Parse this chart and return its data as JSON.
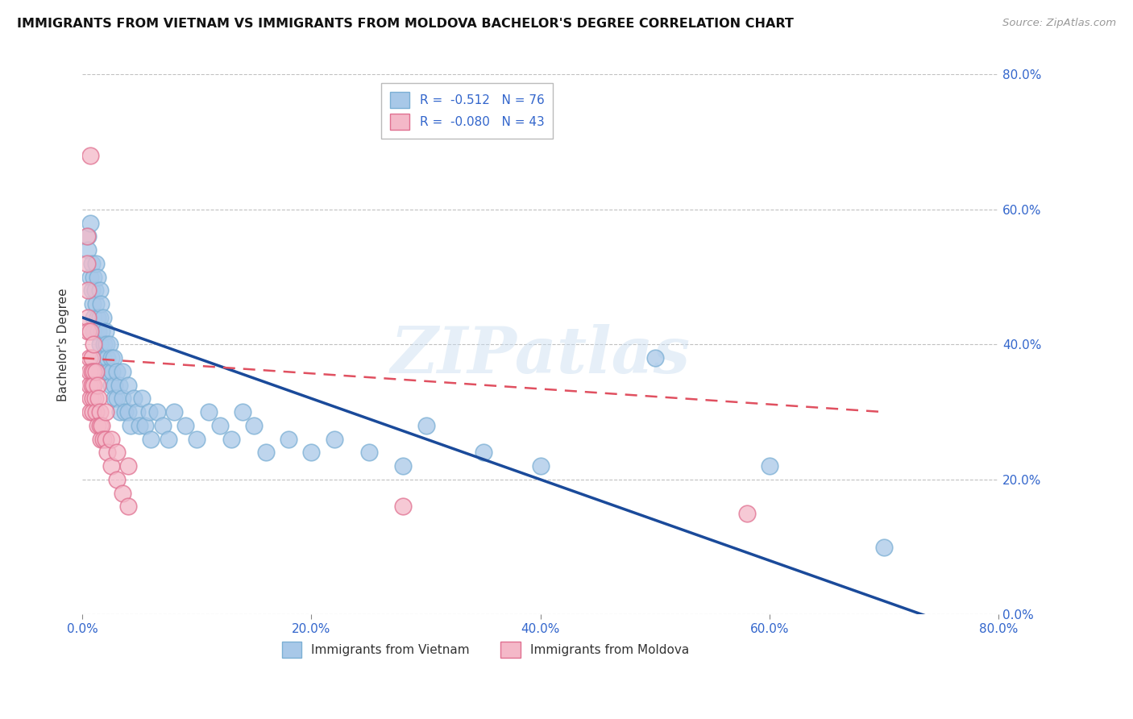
{
  "title": "IMMIGRANTS FROM VIETNAM VS IMMIGRANTS FROM MOLDOVA BACHELOR'S DEGREE CORRELATION CHART",
  "source": "Source: ZipAtlas.com",
  "ylabel": "Bachelor's Degree",
  "x_range": [
    0,
    0.8
  ],
  "y_range": [
    0,
    0.8
  ],
  "vietnam_color": "#a8c8e8",
  "vietnam_edge": "#7bafd4",
  "moldova_color": "#f4b8c8",
  "moldova_edge": "#e07090",
  "trendline_vietnam_color": "#1a4a9a",
  "trendline_moldova_color": "#e05060",
  "watermark_text": "ZIPatlas",
  "legend_label_vn": "R =  -0.512   N = 76",
  "legend_label_md": "R =  -0.080   N = 43",
  "bottom_label_vn": "Immigrants from Vietnam",
  "bottom_label_md": "Immigrants from Moldova",
  "vietnam_scatter": [
    [
      0.005,
      0.56
    ],
    [
      0.005,
      0.54
    ],
    [
      0.007,
      0.58
    ],
    [
      0.007,
      0.5
    ],
    [
      0.008,
      0.52
    ],
    [
      0.008,
      0.48
    ],
    [
      0.009,
      0.46
    ],
    [
      0.01,
      0.44
    ],
    [
      0.01,
      0.5
    ],
    [
      0.01,
      0.42
    ],
    [
      0.011,
      0.48
    ],
    [
      0.012,
      0.46
    ],
    [
      0.012,
      0.52
    ],
    [
      0.013,
      0.44
    ],
    [
      0.013,
      0.5
    ],
    [
      0.014,
      0.42
    ],
    [
      0.015,
      0.48
    ],
    [
      0.015,
      0.44
    ],
    [
      0.015,
      0.4
    ],
    [
      0.016,
      0.46
    ],
    [
      0.017,
      0.42
    ],
    [
      0.018,
      0.38
    ],
    [
      0.018,
      0.44
    ],
    [
      0.019,
      0.4
    ],
    [
      0.02,
      0.42
    ],
    [
      0.02,
      0.36
    ],
    [
      0.021,
      0.4
    ],
    [
      0.022,
      0.38
    ],
    [
      0.023,
      0.36
    ],
    [
      0.024,
      0.4
    ],
    [
      0.025,
      0.38
    ],
    [
      0.025,
      0.34
    ],
    [
      0.026,
      0.36
    ],
    [
      0.027,
      0.38
    ],
    [
      0.028,
      0.34
    ],
    [
      0.028,
      0.32
    ],
    [
      0.03,
      0.36
    ],
    [
      0.03,
      0.32
    ],
    [
      0.032,
      0.34
    ],
    [
      0.033,
      0.3
    ],
    [
      0.035,
      0.32
    ],
    [
      0.035,
      0.36
    ],
    [
      0.037,
      0.3
    ],
    [
      0.04,
      0.34
    ],
    [
      0.04,
      0.3
    ],
    [
      0.042,
      0.28
    ],
    [
      0.045,
      0.32
    ],
    [
      0.048,
      0.3
    ],
    [
      0.05,
      0.28
    ],
    [
      0.052,
      0.32
    ],
    [
      0.055,
      0.28
    ],
    [
      0.058,
      0.3
    ],
    [
      0.06,
      0.26
    ],
    [
      0.065,
      0.3
    ],
    [
      0.07,
      0.28
    ],
    [
      0.075,
      0.26
    ],
    [
      0.08,
      0.3
    ],
    [
      0.09,
      0.28
    ],
    [
      0.1,
      0.26
    ],
    [
      0.11,
      0.3
    ],
    [
      0.12,
      0.28
    ],
    [
      0.13,
      0.26
    ],
    [
      0.14,
      0.3
    ],
    [
      0.15,
      0.28
    ],
    [
      0.16,
      0.24
    ],
    [
      0.18,
      0.26
    ],
    [
      0.2,
      0.24
    ],
    [
      0.22,
      0.26
    ],
    [
      0.25,
      0.24
    ],
    [
      0.28,
      0.22
    ],
    [
      0.3,
      0.28
    ],
    [
      0.35,
      0.24
    ],
    [
      0.4,
      0.22
    ],
    [
      0.5,
      0.38
    ],
    [
      0.6,
      0.22
    ],
    [
      0.7,
      0.1
    ]
  ],
  "moldova_scatter": [
    [
      0.004,
      0.56
    ],
    [
      0.004,
      0.52
    ],
    [
      0.005,
      0.48
    ],
    [
      0.005,
      0.44
    ],
    [
      0.005,
      0.42
    ],
    [
      0.006,
      0.38
    ],
    [
      0.006,
      0.36
    ],
    [
      0.006,
      0.34
    ],
    [
      0.007,
      0.32
    ],
    [
      0.007,
      0.3
    ],
    [
      0.007,
      0.42
    ],
    [
      0.008,
      0.38
    ],
    [
      0.008,
      0.36
    ],
    [
      0.008,
      0.34
    ],
    [
      0.009,
      0.32
    ],
    [
      0.009,
      0.3
    ],
    [
      0.01,
      0.4
    ],
    [
      0.01,
      0.36
    ],
    [
      0.01,
      0.34
    ],
    [
      0.011,
      0.32
    ],
    [
      0.012,
      0.3
    ],
    [
      0.012,
      0.36
    ],
    [
      0.013,
      0.34
    ],
    [
      0.013,
      0.28
    ],
    [
      0.014,
      0.32
    ],
    [
      0.015,
      0.3
    ],
    [
      0.015,
      0.28
    ],
    [
      0.016,
      0.26
    ],
    [
      0.017,
      0.28
    ],
    [
      0.018,
      0.26
    ],
    [
      0.02,
      0.3
    ],
    [
      0.02,
      0.26
    ],
    [
      0.022,
      0.24
    ],
    [
      0.025,
      0.26
    ],
    [
      0.025,
      0.22
    ],
    [
      0.03,
      0.24
    ],
    [
      0.03,
      0.2
    ],
    [
      0.035,
      0.18
    ],
    [
      0.04,
      0.22
    ],
    [
      0.04,
      0.16
    ],
    [
      0.007,
      0.68
    ],
    [
      0.28,
      0.16
    ],
    [
      0.58,
      0.15
    ]
  ],
  "vietnam_trend": [
    0.0,
    0.44,
    0.8,
    -0.04
  ],
  "moldova_trend": [
    0.0,
    0.38,
    0.7,
    0.3
  ]
}
